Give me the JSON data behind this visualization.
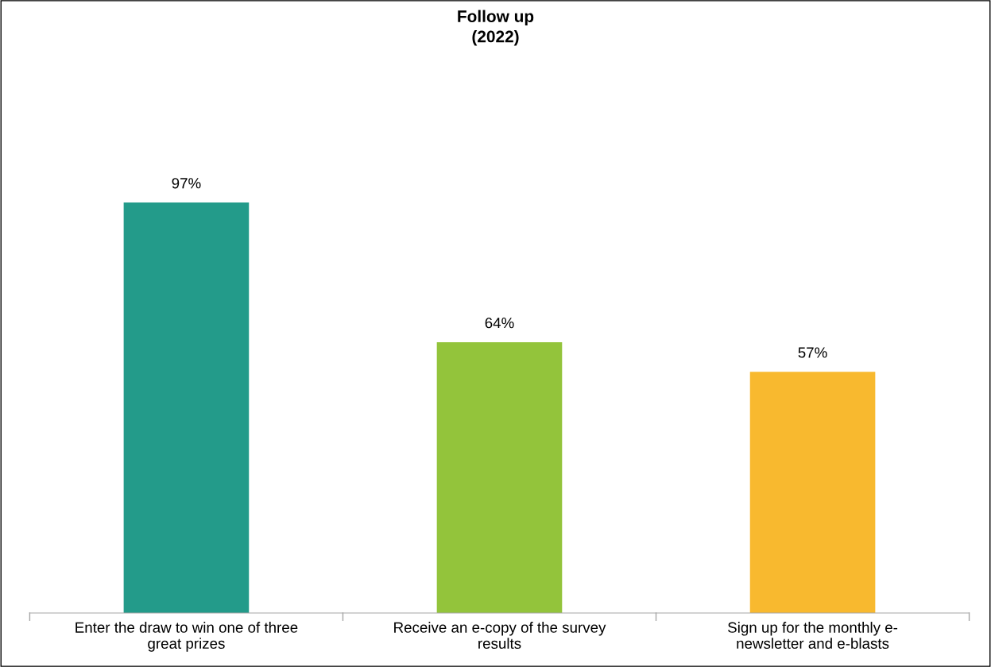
{
  "chart_data": {
    "type": "bar",
    "title": "Follow up\n(2022)",
    "categories": [
      "Enter the draw to win one of three\ngreat prizes",
      "Receive an e-copy of the survey\nresults",
      "Sign up for the monthly e-\nnewsletter and e-blasts"
    ],
    "values": [
      97,
      64,
      57
    ],
    "colors": [
      "#239b8a",
      "#93c43b",
      "#f8b92f"
    ],
    "value_labels": [
      "97%",
      "64%",
      "57%"
    ],
    "grid": false,
    "legend": false
  }
}
